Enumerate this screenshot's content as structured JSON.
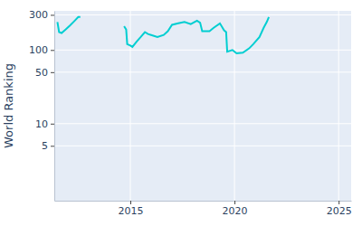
{
  "chart_data": {
    "type": "line",
    "y_label": "World Ranking",
    "x": [
      2011.5,
      2011.58,
      2011.7,
      2011.9,
      2012.1,
      2012.3,
      2012.5,
      2012.6,
      2013.6,
      2014.7,
      2014.8,
      2014.85,
      2015.0,
      2015.1,
      2015.3,
      2015.5,
      2015.7,
      2015.85,
      2016.0,
      2016.3,
      2016.6,
      2016.8,
      2017.0,
      2017.3,
      2017.6,
      2017.9,
      2018.2,
      2018.35,
      2018.45,
      2018.8,
      2019.0,
      2019.3,
      2019.5,
      2019.6,
      2019.65,
      2019.9,
      2020.1,
      2020.4,
      2020.7,
      2020.9,
      2021.2,
      2021.4,
      2021.55,
      2021.65
    ],
    "values": [
      240,
      175,
      170,
      190,
      215,
      245,
      280,
      280,
      null,
      210,
      190,
      120,
      115,
      110,
      130,
      150,
      175,
      165,
      160,
      150,
      160,
      180,
      220,
      230,
      240,
      225,
      250,
      235,
      180,
      180,
      200,
      230,
      185,
      175,
      95,
      100,
      90,
      92,
      105,
      120,
      150,
      200,
      240,
      280
    ],
    "color": "#00ced1",
    "log": "y",
    "grid": true,
    "xlim": [
      2011.35,
      2025.6
    ],
    "xticks": [
      2015,
      2020,
      2025
    ],
    "ylim": [
      0.9,
      340
    ],
    "yticks": [
      5,
      10,
      50,
      100,
      300
    ]
  }
}
